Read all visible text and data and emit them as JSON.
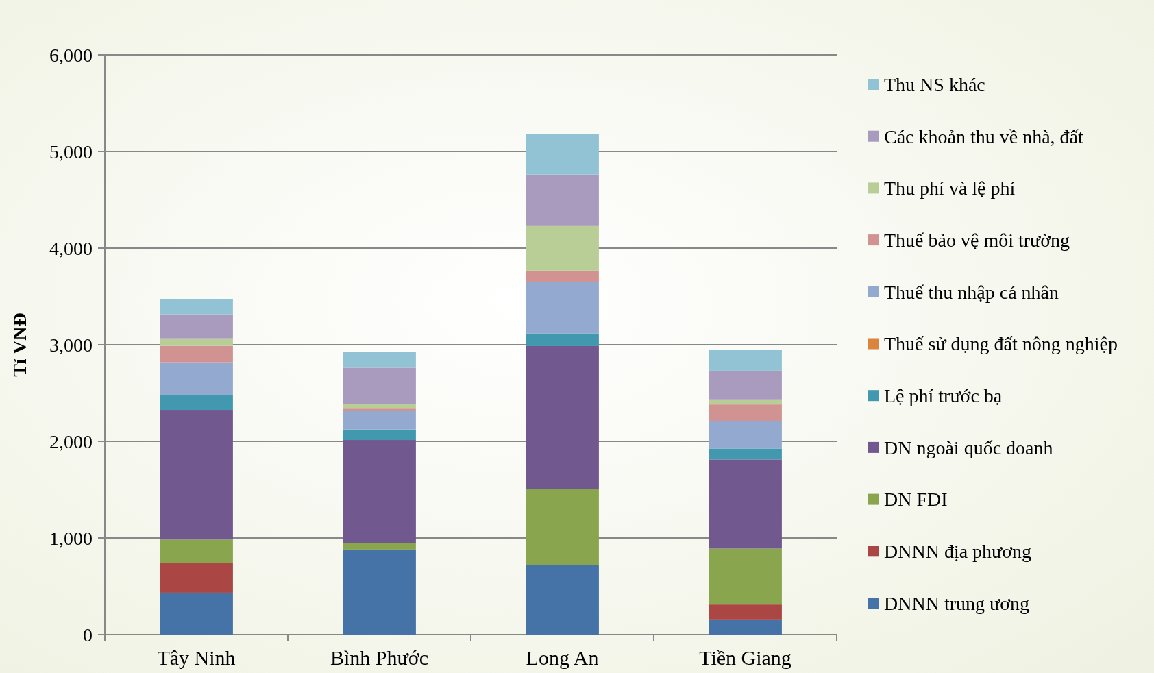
{
  "chart_data": {
    "type": "bar",
    "stacked": true,
    "ylabel": "Tỉ VNĐ",
    "categories": [
      "Tây Ninh",
      "Bình Phước",
      "Long An",
      "Tiền Giang"
    ],
    "series": [
      {
        "name": "DNNN trung ương",
        "color": "#4572a7",
        "values": [
          433,
          880,
          722,
          157
        ]
      },
      {
        "name": "DNNN địa phương",
        "color": "#aa4643",
        "values": [
          305,
          0,
          0,
          154
        ]
      },
      {
        "name": "DN FDI",
        "color": "#89a54e",
        "values": [
          245,
          69,
          788,
          579
        ]
      },
      {
        "name": "DN ngoài quốc doanh",
        "color": "#71588f",
        "values": [
          1343,
          1065,
          1476,
          923
        ]
      },
      {
        "name": "Lệ phí trước bạ",
        "color": "#4198af",
        "values": [
          152,
          109,
          131,
          113
        ]
      },
      {
        "name": "Thuế sử dụng đất nông nghiệp",
        "color": "#db843d",
        "values": [
          null,
          null,
          0,
          0
        ]
      },
      {
        "name": "Thuế thu nhập cá nhân",
        "color": "#93a9cf",
        "values": [
          340,
          194,
          533,
          280
        ]
      },
      {
        "name": "Thuế bảo vệ môi trường",
        "color": "#d19392",
        "values": [
          170,
          22,
          117,
          176
        ]
      },
      {
        "name": "Thu phí và lệ phí",
        "color": "#b9cd96",
        "values": [
          78,
          47,
          461,
          52
        ]
      },
      {
        "name": "Các khoản thu về nhà, đất",
        "color": "#a99bbd",
        "values": [
          248,
          377,
          533,
          297
        ]
      },
      {
        "name": "Thu NS khác",
        "color": "#92c3d5",
        "values": [
          156,
          166,
          420,
          218
        ]
      }
    ],
    "ylim": [
      0,
      6000
    ],
    "yticks": [
      {
        "value": 0,
        "label": "0"
      },
      {
        "value": 1000,
        "label": "1,000"
      },
      {
        "value": 2000,
        "label": "2,000"
      },
      {
        "value": 3000,
        "label": "3,000"
      },
      {
        "value": 4000,
        "label": "4,000"
      },
      {
        "value": 5000,
        "label": "5,000"
      },
      {
        "value": 6000,
        "label": "6,000"
      }
    ],
    "grid": "y",
    "legend": "right"
  }
}
